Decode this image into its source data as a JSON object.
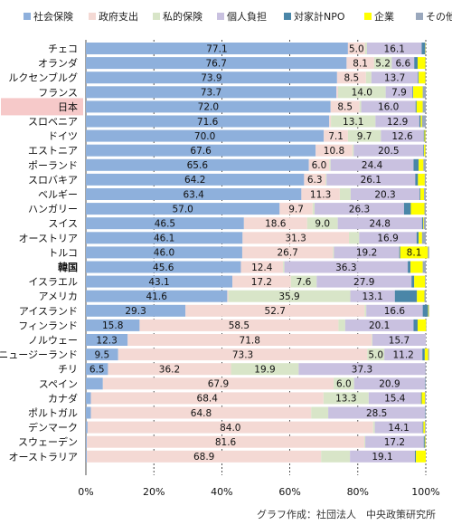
{
  "chart_data": {
    "type": "bar",
    "orientation": "horizontal",
    "stacked": true,
    "normalized": true,
    "xlim": [
      0,
      100
    ],
    "grid": true,
    "legend_position": "top",
    "x_ticks": [
      "0%",
      "20%",
      "40%",
      "60%",
      "80%",
      "100%"
    ],
    "highlight_category": "日本",
    "categories": [
      "チェコ",
      "オランダ",
      "ルクセンブルグ",
      "フランス",
      "日本",
      "スロベニア",
      "ドイツ",
      "エストニア",
      "ポーランド",
      "スロバキア",
      "ベルギー",
      "ハンガリー",
      "スイス",
      "オーストリア",
      "トルコ",
      "韓国",
      "イスラエル",
      "アメリカ",
      "アイスランド",
      "フィンランド",
      "ノルウェー",
      "ニュージーランド",
      "チリ",
      "スペイン",
      "カナダ",
      "ポルトガル",
      "デンマーク",
      "スウェーデン",
      "オーストラリア"
    ],
    "series": [
      {
        "name": "社会保険",
        "color": "#8eb0dc",
        "values": [
          77.1,
          76.7,
          73.9,
          73.7,
          72.0,
          71.6,
          70.0,
          67.6,
          65.6,
          64.2,
          63.4,
          57.0,
          46.5,
          46.1,
          46.0,
          45.6,
          43.1,
          41.6,
          29.3,
          15.8,
          12.3,
          9.5,
          6.5,
          5.0,
          1.5,
          1.5,
          0.5,
          0.3,
          0.3
        ],
        "labels": [
          "77.1",
          "76.7",
          "73.9",
          "73.7",
          "72.0",
          "71.6",
          "70.0",
          "67.6",
          "65.6",
          "64.2",
          "63.4",
          "57.0",
          "46.5",
          "46.1",
          "46.0",
          "45.6",
          "43.1",
          "41.6",
          "29.3",
          "15.8",
          "12.3",
          "9.5",
          "6.5",
          "",
          "",
          "",
          "",
          "",
          ""
        ]
      },
      {
        "name": "政府支出",
        "color": "#f4d9d4",
        "values": [
          5.0,
          8.1,
          8.5,
          0.5,
          8.5,
          0.5,
          7.1,
          10.8,
          6.0,
          6.3,
          11.3,
          9.7,
          18.6,
          31.3,
          26.7,
          12.4,
          17.2,
          0.3,
          52.7,
          58.5,
          71.8,
          73.3,
          36.2,
          67.9,
          68.4,
          64.8,
          84.0,
          81.6,
          68.9
        ],
        "labels": [
          "5.0",
          "8.1",
          "8.5",
          "",
          "8.5",
          "",
          "7.1",
          "10.8",
          "6.0",
          "6.3",
          "11.3",
          "9.7",
          "18.6",
          "31.3",
          "26.7",
          "12.4",
          "17.2",
          "",
          "52.7",
          "58.5",
          "71.8",
          "73.3",
          "36.2",
          "67.9",
          "68.4",
          "64.8",
          "84.0",
          "81.6",
          "68.9"
        ]
      },
      {
        "name": "私的保険",
        "color": "#d8e5c8",
        "values": [
          0.6,
          5.2,
          1.6,
          14.0,
          0.5,
          13.1,
          9.7,
          0.4,
          0.4,
          0.3,
          3.2,
          0.6,
          9.0,
          3.0,
          0.3,
          0.4,
          7.6,
          35.9,
          0.5,
          2.0,
          0.2,
          5.0,
          19.9,
          6.0,
          13.3,
          5.0,
          0.5,
          0.3,
          8.5
        ],
        "labels": [
          "",
          "5.2",
          "",
          "14.0",
          "",
          "13.1",
          "9.7",
          "",
          "",
          "",
          "",
          "",
          "9.0",
          "",
          "",
          "",
          "7.6",
          "35.9",
          "",
          "",
          "",
          "5.0",
          "19.9",
          "6.0",
          "13.3",
          "",
          "",
          "",
          ""
        ]
      },
      {
        "name": "個人負担",
        "color": "#c9c1e0",
        "values": [
          16.1,
          6.6,
          13.7,
          7.9,
          16.0,
          12.9,
          12.6,
          20.5,
          24.4,
          26.1,
          20.3,
          26.3,
          24.8,
          16.9,
          19.2,
          36.3,
          27.9,
          13.1,
          16.6,
          20.1,
          15.7,
          11.2,
          37.3,
          20.9,
          15.4,
          28.5,
          14.1,
          17.2,
          19.1
        ],
        "labels": [
          "16.1",
          "6.6",
          "13.7",
          "7.9",
          "16.0",
          "12.9",
          "12.6",
          "20.5",
          "24.4",
          "26.1",
          "20.3",
          "26.3",
          "24.8",
          "16.9",
          "19.2",
          "36.3",
          "27.9",
          "13.1",
          "16.6",
          "20.1",
          "15.7",
          "11.2",
          "37.3",
          "20.9",
          "15.4",
          "28.5",
          "14.1",
          "17.2",
          "19.1"
        ]
      },
      {
        "name": "対家計NPO",
        "color": "#4a86a8",
        "values": [
          1.0,
          1.0,
          0.2,
          0.2,
          0.3,
          0.4,
          0.2,
          0.2,
          1.5,
          0.8,
          0.2,
          2.0,
          0.3,
          0.6,
          0.3,
          0.8,
          0.8,
          6.5,
          1.6,
          1.2,
          0.0,
          0.7,
          0.0,
          0.1,
          0.2,
          0.1,
          0.2,
          0.3,
          0.3
        ],
        "labels": [
          "",
          "",
          "",
          "",
          "",
          "",
          "",
          "",
          "",
          "",
          "",
          "",
          "",
          "",
          "",
          "",
          "",
          "",
          "",
          "",
          "",
          "",
          "",
          "",
          "",
          "",
          "",
          "",
          ""
        ]
      },
      {
        "name": "企業",
        "color": "#ffff00",
        "values": [
          0.1,
          2.3,
          2.0,
          2.8,
          1.8,
          0.4,
          0.3,
          0.4,
          1.4,
          2.0,
          1.1,
          4.0,
          0.2,
          1.0,
          8.1,
          3.6,
          3.2,
          2.2,
          0.2,
          2.5,
          0.0,
          1.0,
          0.0,
          0.0,
          1.0,
          0.0,
          0.5,
          0.2,
          2.9
        ],
        "labels": [
          "",
          "",
          "",
          "",
          "",
          "",
          "",
          "",
          "",
          "",
          "",
          "",
          "",
          "",
          "8.1",
          "",
          "",
          "",
          "",
          "",
          "",
          "",
          "",
          "",
          "",
          "",
          "",
          "",
          ""
        ]
      },
      {
        "name": "その他",
        "color": "#9aa8bd",
        "values": [
          0.1,
          0.1,
          0.1,
          0.9,
          0.9,
          1.1,
          0.1,
          0.1,
          0.7,
          0.3,
          0.5,
          0.4,
          0.6,
          1.1,
          0.4,
          0.9,
          0.2,
          0.4,
          0.1,
          0.1,
          0.0,
          0.3,
          0.1,
          0.1,
          0.2,
          0.1,
          0.2,
          0.1,
          0.0
        ],
        "labels": [
          "",
          "",
          "",
          "",
          "",
          "",
          "",
          "",
          "",
          "",
          "",
          "",
          "",
          "",
          "",
          "",
          "",
          "",
          "",
          "",
          "",
          "",
          "",
          "",
          "",
          "",
          "",
          "",
          ""
        ]
      }
    ],
    "credit": "グラフ作成：社団法人　中央政策研究所"
  }
}
